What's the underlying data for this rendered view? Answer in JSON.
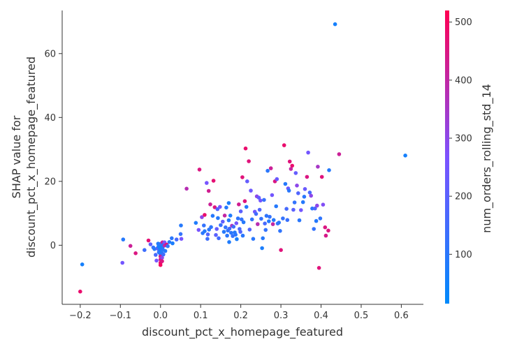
{
  "chart_data": {
    "type": "scatter",
    "title": "",
    "xlabel": "discount_pct_x_homepage_featured",
    "ylabel_lines": [
      "SHAP value for",
      "discount_pct_x_homepage_featured"
    ],
    "xlim": [
      -0.245,
      0.655
    ],
    "ylim": [
      -18.5,
      73.5
    ],
    "xticks": [
      -0.2,
      -0.1,
      0.0,
      0.1,
      0.2,
      0.3,
      0.4,
      0.5,
      0.6
    ],
    "xtick_labels": [
      "−0.2",
      "−0.1",
      "0.0",
      "0.1",
      "0.2",
      "0.3",
      "0.4",
      "0.5",
      "0.6"
    ],
    "yticks": [
      0,
      20,
      40,
      60
    ],
    "ytick_labels": [
      "0",
      "20",
      "40",
      "60"
    ],
    "grid": false,
    "colorbar": {
      "label": "num_orders_rolling_std_14",
      "range": [
        15,
        520
      ],
      "ticks": [
        100,
        200,
        300,
        400,
        500
      ],
      "tick_labels": [
        "100",
        "200",
        "300",
        "400",
        "500"
      ],
      "low_color": "#008afb",
      "mid_color": "#7c52ff",
      "high_color": "#ff0052"
    },
    "points": [
      [
        -0.2,
        -14.5,
        480
      ],
      [
        -0.195,
        -6.0,
        60
      ],
      [
        -0.095,
        -5.5,
        250
      ],
      [
        -0.093,
        1.8,
        90
      ],
      [
        -0.075,
        -0.2,
        420
      ],
      [
        -0.062,
        -2.5,
        450
      ],
      [
        -0.04,
        -1.5,
        140
      ],
      [
        -0.03,
        1.5,
        470
      ],
      [
        -0.025,
        0.3,
        200
      ],
      [
        -0.018,
        -0.7,
        120
      ],
      [
        -0.015,
        -1.2,
        90
      ],
      [
        -0.012,
        -3.0,
        160
      ],
      [
        -0.01,
        -4.8,
        260
      ],
      [
        -0.008,
        -1.0,
        180
      ],
      [
        -0.006,
        0.5,
        80
      ],
      [
        -0.005,
        -0.4,
        70
      ],
      [
        -0.004,
        -2.2,
        100
      ],
      [
        -0.003,
        -1.6,
        130
      ],
      [
        -0.002,
        -0.8,
        60
      ],
      [
        -0.001,
        0.0,
        90
      ],
      [
        0.0,
        -0.5,
        50
      ],
      [
        0.0,
        0.4,
        110
      ],
      [
        0.0,
        -1.3,
        75
      ],
      [
        0.0,
        -2.8,
        95
      ],
      [
        0.0,
        -3.5,
        420
      ],
      [
        0.0,
        -4.5,
        440
      ],
      [
        0.0,
        -5.5,
        480
      ],
      [
        0.0,
        -6.2,
        500
      ],
      [
        0.001,
        -1.9,
        60
      ],
      [
        0.002,
        -0.2,
        85
      ],
      [
        0.002,
        -1.0,
        65
      ],
      [
        0.003,
        0.6,
        120
      ],
      [
        0.003,
        -2.4,
        90
      ],
      [
        0.004,
        -3.9,
        300
      ],
      [
        0.004,
        -5.0,
        450
      ],
      [
        0.005,
        -0.6,
        70
      ],
      [
        0.005,
        0.9,
        420
      ],
      [
        0.006,
        -1.4,
        100
      ],
      [
        0.007,
        -2.9,
        140
      ],
      [
        0.008,
        0.2,
        80
      ],
      [
        0.01,
        0.9,
        260
      ],
      [
        0.01,
        -0.1,
        380
      ],
      [
        0.012,
        -1.8,
        90
      ],
      [
        0.015,
        0.2,
        450
      ],
      [
        0.018,
        -0.3,
        110
      ],
      [
        0.022,
        1.0,
        90
      ],
      [
        0.028,
        2.2,
        100
      ],
      [
        0.03,
        0.6,
        70
      ],
      [
        0.04,
        1.8,
        160
      ],
      [
        0.05,
        3.5,
        120
      ],
      [
        0.051,
        6.2,
        90
      ],
      [
        0.052,
        2.0,
        260
      ],
      [
        0.065,
        17.7,
        380
      ],
      [
        0.088,
        7.0,
        80
      ],
      [
        0.095,
        4.8,
        260
      ],
      [
        0.097,
        23.7,
        450
      ],
      [
        0.103,
        8.8,
        300
      ],
      [
        0.105,
        3.8,
        100
      ],
      [
        0.108,
        6.2,
        120
      ],
      [
        0.11,
        4.4,
        90
      ],
      [
        0.11,
        9.5,
        480
      ],
      [
        0.115,
        19.5,
        260
      ],
      [
        0.117,
        2.0,
        140
      ],
      [
        0.118,
        3.4,
        180
      ],
      [
        0.12,
        17.0,
        430
      ],
      [
        0.121,
        4.9,
        100
      ],
      [
        0.124,
        12.8,
        420
      ],
      [
        0.126,
        5.7,
        110
      ],
      [
        0.13,
        9.2,
        90
      ],
      [
        0.132,
        20.2,
        470
      ],
      [
        0.135,
        11.9,
        450
      ],
      [
        0.138,
        3.2,
        200
      ],
      [
        0.14,
        5.1,
        220
      ],
      [
        0.142,
        11.3,
        180
      ],
      [
        0.143,
        8.5,
        90
      ],
      [
        0.145,
        2.2,
        150
      ],
      [
        0.148,
        12.0,
        250
      ],
      [
        0.15,
        6.3,
        130
      ],
      [
        0.155,
        7.4,
        210
      ],
      [
        0.158,
        4.2,
        90
      ],
      [
        0.16,
        9.3,
        400
      ],
      [
        0.162,
        5.6,
        120
      ],
      [
        0.164,
        11.8,
        90
      ],
      [
        0.166,
        3.0,
        100
      ],
      [
        0.168,
        4.6,
        110
      ],
      [
        0.17,
        13.2,
        70
      ],
      [
        0.17,
        7.8,
        90
      ],
      [
        0.171,
        1.0,
        80
      ],
      [
        0.172,
        5.2,
        150
      ],
      [
        0.174,
        9.3,
        80
      ],
      [
        0.176,
        3.9,
        100
      ],
      [
        0.178,
        6.1,
        360
      ],
      [
        0.18,
        2.9,
        120
      ],
      [
        0.182,
        5.8,
        140
      ],
      [
        0.185,
        4.0,
        90
      ],
      [
        0.187,
        3.3,
        100
      ],
      [
        0.189,
        6.9,
        250
      ],
      [
        0.19,
        1.9,
        70
      ],
      [
        0.193,
        8.4,
        110
      ],
      [
        0.195,
        12.8,
        430
      ],
      [
        0.197,
        5.1,
        160
      ],
      [
        0.199,
        4.2,
        180
      ],
      [
        0.2,
        10.6,
        200
      ],
      [
        0.202,
        8.1,
        120
      ],
      [
        0.204,
        21.3,
        460
      ],
      [
        0.205,
        3.0,
        100
      ],
      [
        0.207,
        7.2,
        90
      ],
      [
        0.21,
        13.8,
        460
      ],
      [
        0.212,
        30.3,
        480
      ],
      [
        0.214,
        12.0,
        90
      ],
      [
        0.216,
        20.0,
        220
      ],
      [
        0.22,
        26.3,
        460
      ],
      [
        0.222,
        4.9,
        180
      ],
      [
        0.225,
        17.1,
        240
      ],
      [
        0.228,
        8.1,
        110
      ],
      [
        0.231,
        2.0,
        100
      ],
      [
        0.235,
        10.5,
        240
      ],
      [
        0.238,
        9.8,
        150
      ],
      [
        0.24,
        15.3,
        300
      ],
      [
        0.242,
        6.6,
        380
      ],
      [
        0.245,
        14.9,
        220
      ],
      [
        0.247,
        11.1,
        180
      ],
      [
        0.249,
        14.0,
        250
      ],
      [
        0.251,
        8.3,
        120
      ],
      [
        0.253,
        -0.9,
        70
      ],
      [
        0.255,
        2.2,
        90
      ],
      [
        0.258,
        14.2,
        130
      ],
      [
        0.26,
        6.8,
        160
      ],
      [
        0.262,
        4.8,
        120
      ],
      [
        0.264,
        9.2,
        110
      ],
      [
        0.267,
        23.3,
        100
      ],
      [
        0.27,
        7.5,
        90
      ],
      [
        0.272,
        8.9,
        120
      ],
      [
        0.275,
        24.1,
        420
      ],
      [
        0.278,
        15.7,
        250
      ],
      [
        0.28,
        6.6,
        400
      ],
      [
        0.282,
        7.9,
        90
      ],
      [
        0.285,
        20.0,
        450
      ],
      [
        0.288,
        12.2,
        90
      ],
      [
        0.29,
        20.7,
        230
      ],
      [
        0.292,
        6.8,
        120
      ],
      [
        0.295,
        7.1,
        100
      ],
      [
        0.298,
        4.5,
        110
      ],
      [
        0.3,
        -1.5,
        460
      ],
      [
        0.305,
        8.4,
        120
      ],
      [
        0.308,
        31.3,
        480
      ],
      [
        0.311,
        19.2,
        90
      ],
      [
        0.314,
        11.4,
        160
      ],
      [
        0.316,
        7.9,
        130
      ],
      [
        0.318,
        17.8,
        240
      ],
      [
        0.32,
        17.1,
        100
      ],
      [
        0.322,
        26.2,
        460
      ],
      [
        0.325,
        23.9,
        400
      ],
      [
        0.328,
        24.9,
        480
      ],
      [
        0.331,
        11.1,
        200
      ],
      [
        0.334,
        13.4,
        120
      ],
      [
        0.337,
        22.6,
        220
      ],
      [
        0.34,
        18.7,
        300
      ],
      [
        0.343,
        16.3,
        180
      ],
      [
        0.346,
        7.8,
        100
      ],
      [
        0.35,
        11.0,
        250
      ],
      [
        0.355,
        13.5,
        90
      ],
      [
        0.358,
        15.2,
        100
      ],
      [
        0.36,
        17.6,
        230
      ],
      [
        0.365,
        21.4,
        450
      ],
      [
        0.368,
        29.0,
        250
      ],
      [
        0.372,
        16.5,
        160
      ],
      [
        0.375,
        15.5,
        300
      ],
      [
        0.378,
        11.5,
        100
      ],
      [
        0.382,
        5.1,
        120
      ],
      [
        0.385,
        11.5,
        180
      ],
      [
        0.388,
        7.6,
        90
      ],
      [
        0.39,
        12.4,
        300
      ],
      [
        0.392,
        24.6,
        350
      ],
      [
        0.395,
        -7.1,
        460
      ],
      [
        0.398,
        8.4,
        110
      ],
      [
        0.402,
        21.4,
        460
      ],
      [
        0.405,
        12.7,
        280
      ],
      [
        0.41,
        5.6,
        450
      ],
      [
        0.412,
        3.0,
        440
      ],
      [
        0.418,
        4.6,
        450
      ],
      [
        0.42,
        23.5,
        90
      ],
      [
        0.435,
        69.2,
        60
      ],
      [
        0.445,
        28.5,
        420
      ],
      [
        0.61,
        28.1,
        60
      ]
    ]
  }
}
